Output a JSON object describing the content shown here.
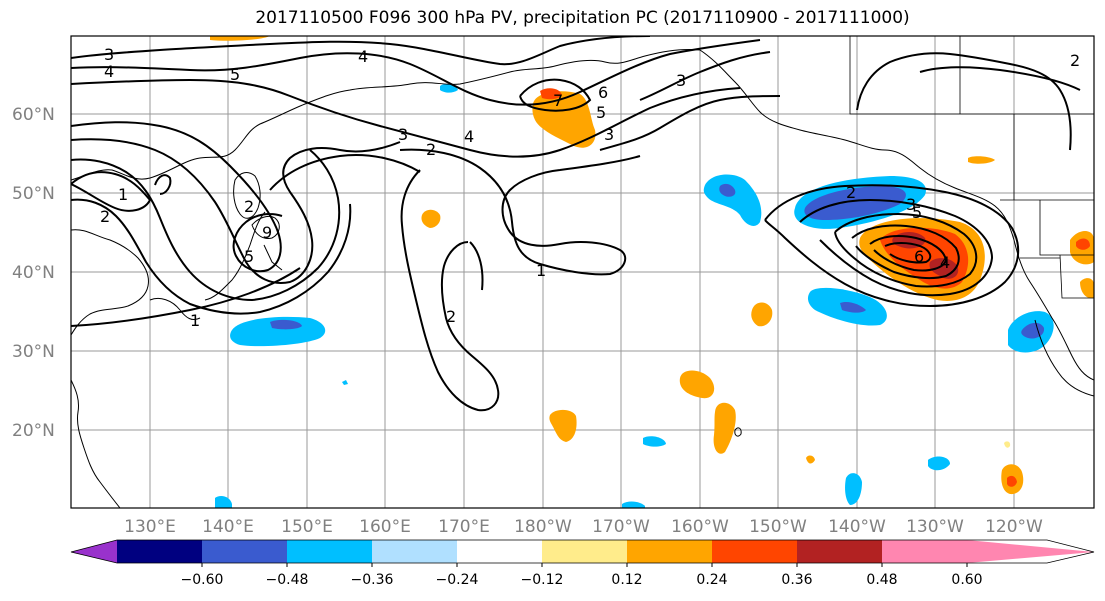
{
  "title": "2017110500 F096 300 hPa PV, precipitation PC (2017110900 - 2017111000)",
  "lat_labels": [
    "60°N",
    "50°N",
    "40°N",
    "30°N",
    "20°N"
  ],
  "lon_labels": [
    "130°E",
    "140°E",
    "150°E",
    "160°E",
    "170°E",
    "180°W",
    "170°W",
    "160°W",
    "150°W",
    "140°W",
    "130°W",
    "120°W"
  ],
  "contour_labels": [
    "3",
    "4",
    "5",
    "4",
    "7",
    "6",
    "5",
    "4",
    "3",
    "2",
    "1",
    "2",
    "3",
    "2",
    "1",
    "2",
    "9",
    "5",
    "1",
    "2",
    "3",
    "5",
    "6",
    "4",
    "3",
    "2"
  ],
  "colorbar": {
    "ticks": [
      "−0.60",
      "−0.48",
      "−0.36",
      "−0.24",
      "−0.12",
      "0.12",
      "0.24",
      "0.36",
      "0.48",
      "0.60"
    ],
    "colors": [
      "#9932cc",
      "#000080",
      "#3a5bcf",
      "#00bfff",
      "#b0e0ff",
      "#ffffff",
      "#ffec8b",
      "#ffa500",
      "#ff4500",
      "#b22222",
      "#ff86b0"
    ]
  }
}
